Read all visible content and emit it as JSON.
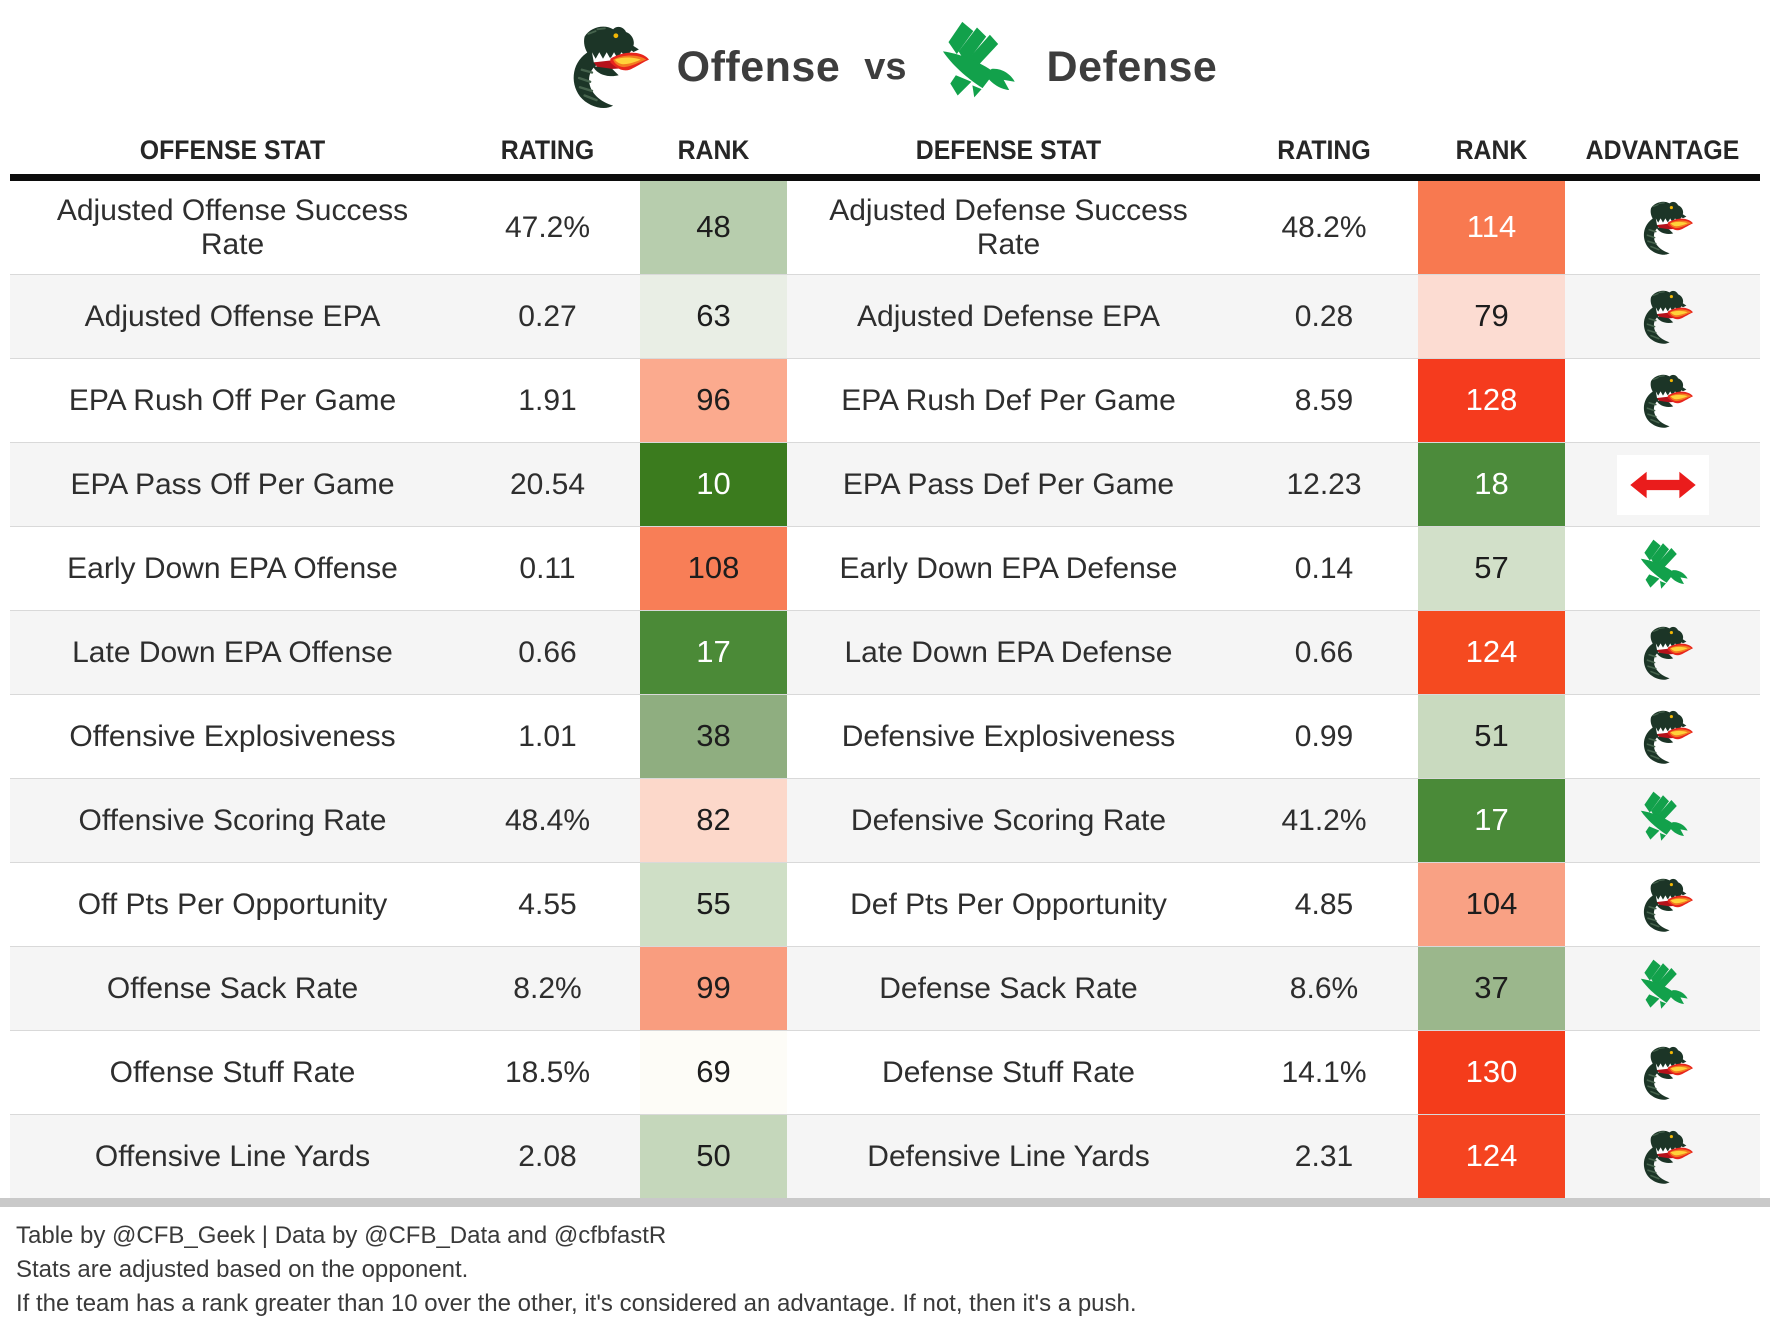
{
  "title": {
    "offense_label": "Offense",
    "vs_label": "vs",
    "defense_label": "Defense"
  },
  "icons": {
    "dragon": "uab-dragon-logo-icon",
    "eagle": "north-texas-eagle-logo-icon",
    "push": "push-double-arrow-icon"
  },
  "colors": {
    "header_rule": "#0c0c0c",
    "bottom_rule": "#c9c9c9",
    "row_stripe": "#f5f5f5",
    "dragon_green": "#1c3527",
    "eagle_green": "#12a14b",
    "flame_red": "#e8251d",
    "flame_orange": "#f47b20",
    "flame_yellow": "#ffd23a",
    "push_arrow_red": "#ea1c1c"
  },
  "chart_data": {
    "type": "table",
    "title": "Offense vs Defense",
    "columns": [
      "OFFENSE STAT",
      "RATING",
      "RANK",
      "DEFENSE STAT",
      "RATING",
      "RANK",
      "ADVANTAGE"
    ],
    "rows": [
      {
        "stat_off": "Adjusted Offense Success Rate",
        "rating_off": "47.2%",
        "rank_off": "48",
        "rank_off_bg": "#b7cdad",
        "rank_off_fg": "#1d1d1d",
        "stat_def": "Adjusted Defense Success Rate",
        "rating_def": "48.2%",
        "rank_def": "114",
        "rank_def_bg": "#f87950",
        "rank_def_fg": "#ffffff",
        "advantage": "dragon"
      },
      {
        "stat_off": "Adjusted Offense EPA",
        "rating_off": "0.27",
        "rank_off": "63",
        "rank_off_bg": "#e9eee5",
        "rank_off_fg": "#1d1d1d",
        "stat_def": "Adjusted Defense EPA",
        "rating_def": "0.28",
        "rank_def": "79",
        "rank_def_bg": "#fcdcd2",
        "rank_def_fg": "#1d1d1d",
        "advantage": "dragon"
      },
      {
        "stat_off": "EPA Rush Off Per Game",
        "rating_off": "1.91",
        "rank_off": "96",
        "rank_off_bg": "#fbaa8e",
        "rank_off_fg": "#1d1d1d",
        "stat_def": "EPA Rush Def Per Game",
        "rating_def": "8.59",
        "rank_def": "128",
        "rank_def_bg": "#f53b1e",
        "rank_def_fg": "#ffffff",
        "advantage": "dragon"
      },
      {
        "stat_off": "EPA Pass Off Per Game",
        "rating_off": "20.54",
        "rank_off": "10",
        "rank_off_bg": "#3b7b1e",
        "rank_off_fg": "#ffffff",
        "stat_def": "EPA Pass Def Per Game",
        "rating_def": "12.23",
        "rank_def": "18",
        "rank_def_bg": "#4c8b3b",
        "rank_def_fg": "#ffffff",
        "advantage": "push"
      },
      {
        "stat_off": "Early Down EPA Offense",
        "rating_off": "0.11",
        "rank_off": "108",
        "rank_off_bg": "#f87e57",
        "rank_off_fg": "#1d1d1d",
        "stat_def": "Early Down EPA Defense",
        "rating_def": "0.14",
        "rank_def": "57",
        "rank_def_bg": "#d2e0c9",
        "rank_def_fg": "#1d1d1d",
        "advantage": "eagle"
      },
      {
        "stat_off": "Late Down EPA Offense",
        "rating_off": "0.66",
        "rank_off": "17",
        "rank_off_bg": "#4b8a37",
        "rank_off_fg": "#ffffff",
        "stat_def": "Late Down EPA Defense",
        "rating_def": "0.66",
        "rank_def": "124",
        "rank_def_bg": "#f54a20",
        "rank_def_fg": "#ffffff",
        "advantage": "dragon"
      },
      {
        "stat_off": "Offensive Explosiveness",
        "rating_off": "1.01",
        "rank_off": "38",
        "rank_off_bg": "#8fae80",
        "rank_off_fg": "#1d1d1d",
        "stat_def": "Defensive Explosiveness",
        "rating_def": "0.99",
        "rank_def": "51",
        "rank_def_bg": "#c9dabf",
        "rank_def_fg": "#1d1d1d",
        "advantage": "dragon"
      },
      {
        "stat_off": "Offensive Scoring Rate",
        "rating_off": "48.4%",
        "rank_off": "82",
        "rank_off_bg": "#fcd8ca",
        "rank_off_fg": "#1d1d1d",
        "stat_def": "Defensive Scoring Rate",
        "rating_def": "41.2%",
        "rank_def": "17",
        "rank_def_bg": "#4a8a38",
        "rank_def_fg": "#ffffff",
        "advantage": "eagle"
      },
      {
        "stat_off": "Off Pts Per Opportunity",
        "rating_off": "4.55",
        "rank_off": "55",
        "rank_off_bg": "#cfdfc6",
        "rank_off_fg": "#1d1d1d",
        "stat_def": "Def Pts Per Opportunity",
        "rating_def": "4.85",
        "rank_def": "104",
        "rank_def_bg": "#f9a184",
        "rank_def_fg": "#1d1d1d",
        "advantage": "dragon"
      },
      {
        "stat_off": "Offense Sack Rate",
        "rating_off": "8.2%",
        "rank_off": "99",
        "rank_off_bg": "#f99d7f",
        "rank_off_fg": "#1d1d1d",
        "stat_def": "Defense Sack Rate",
        "rating_def": "8.6%",
        "rank_def": "37",
        "rank_def_bg": "#9bb78c",
        "rank_def_fg": "#1d1d1d",
        "advantage": "eagle"
      },
      {
        "stat_off": "Offense Stuff Rate",
        "rating_off": "18.5%",
        "rank_off": "69",
        "rank_off_bg": "#fdfcf7",
        "rank_off_fg": "#1d1d1d",
        "stat_def": "Defense Stuff Rate",
        "rating_def": "14.1%",
        "rank_def": "130",
        "rank_def_bg": "#f43c1b",
        "rank_def_fg": "#ffffff",
        "advantage": "dragon"
      },
      {
        "stat_off": "Offensive Line Yards",
        "rating_off": "2.08",
        "rank_off": "50",
        "rank_off_bg": "#c5d7bb",
        "rank_off_fg": "#1d1d1d",
        "stat_def": "Defensive Line Yards",
        "rating_def": "2.31",
        "rank_def": "124",
        "rank_def_bg": "#f54420",
        "rank_def_fg": "#ffffff",
        "advantage": "dragon"
      }
    ]
  },
  "footer": {
    "line1": "Table by @CFB_Geek | Data by @CFB_Data and @cfbfastR",
    "line2": "Stats are adjusted based on the opponent.",
    "line3": "If the team has a rank greater than 10 over the other, it's considered an advantage. If not, then it's a push."
  }
}
